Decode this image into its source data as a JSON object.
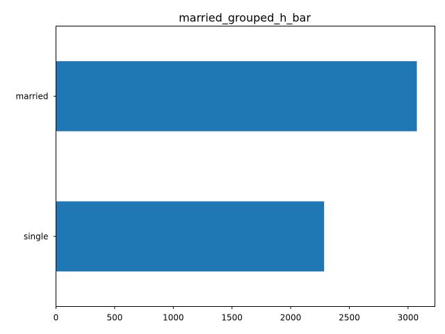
{
  "chart_data": {
    "type": "bar",
    "orientation": "horizontal",
    "title": "married_grouped_h_bar",
    "xlabel": "",
    "ylabel": "",
    "categories": [
      "single",
      "married"
    ],
    "values": [
      2285,
      3075
    ],
    "xlim": [
      0,
      3229
    ],
    "x_ticks": [
      0,
      500,
      1000,
      1500,
      2000,
      2500,
      3000
    ],
    "grid": false,
    "legend": "none",
    "bar_color": "#1f77b4"
  }
}
